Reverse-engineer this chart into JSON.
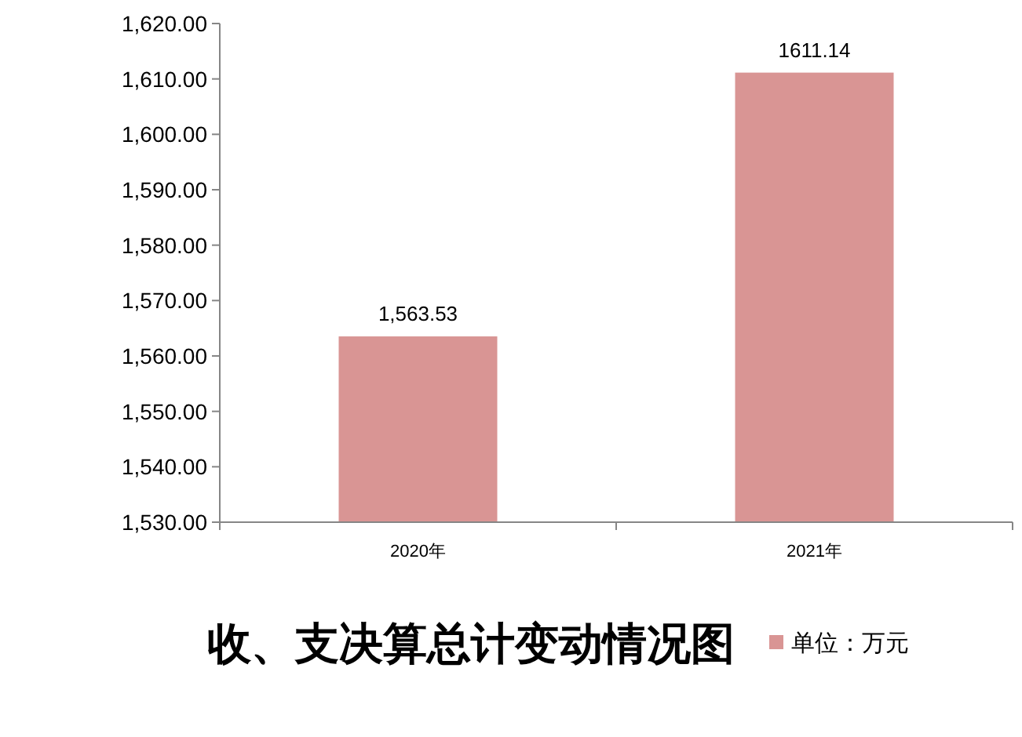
{
  "chart_data": {
    "type": "bar",
    "title": "收、支决算总计变动情况图",
    "categories": [
      "2020年",
      "2021年"
    ],
    "series": [
      {
        "name": "单位：万元",
        "color": "#d99594",
        "values": [
          1563.53,
          1611.14
        ],
        "value_labels": [
          "1,563.53",
          "1611.14"
        ]
      }
    ],
    "ylim": [
      1530,
      1620
    ],
    "yticks": [
      {
        "value": 1530,
        "label": "1,530.00"
      },
      {
        "value": 1540,
        "label": "1,540.00"
      },
      {
        "value": 1550,
        "label": "1,550.00"
      },
      {
        "value": 1560,
        "label": "1,560.00"
      },
      {
        "value": 1570,
        "label": "1,570.00"
      },
      {
        "value": 1580,
        "label": "1,580.00"
      },
      {
        "value": 1590,
        "label": "1,590.00"
      },
      {
        "value": 1600,
        "label": "1,600.00"
      },
      {
        "value": 1610,
        "label": "1,610.00"
      },
      {
        "value": 1620,
        "label": "1,620.00"
      }
    ],
    "legend": "bottom",
    "grid": false
  }
}
